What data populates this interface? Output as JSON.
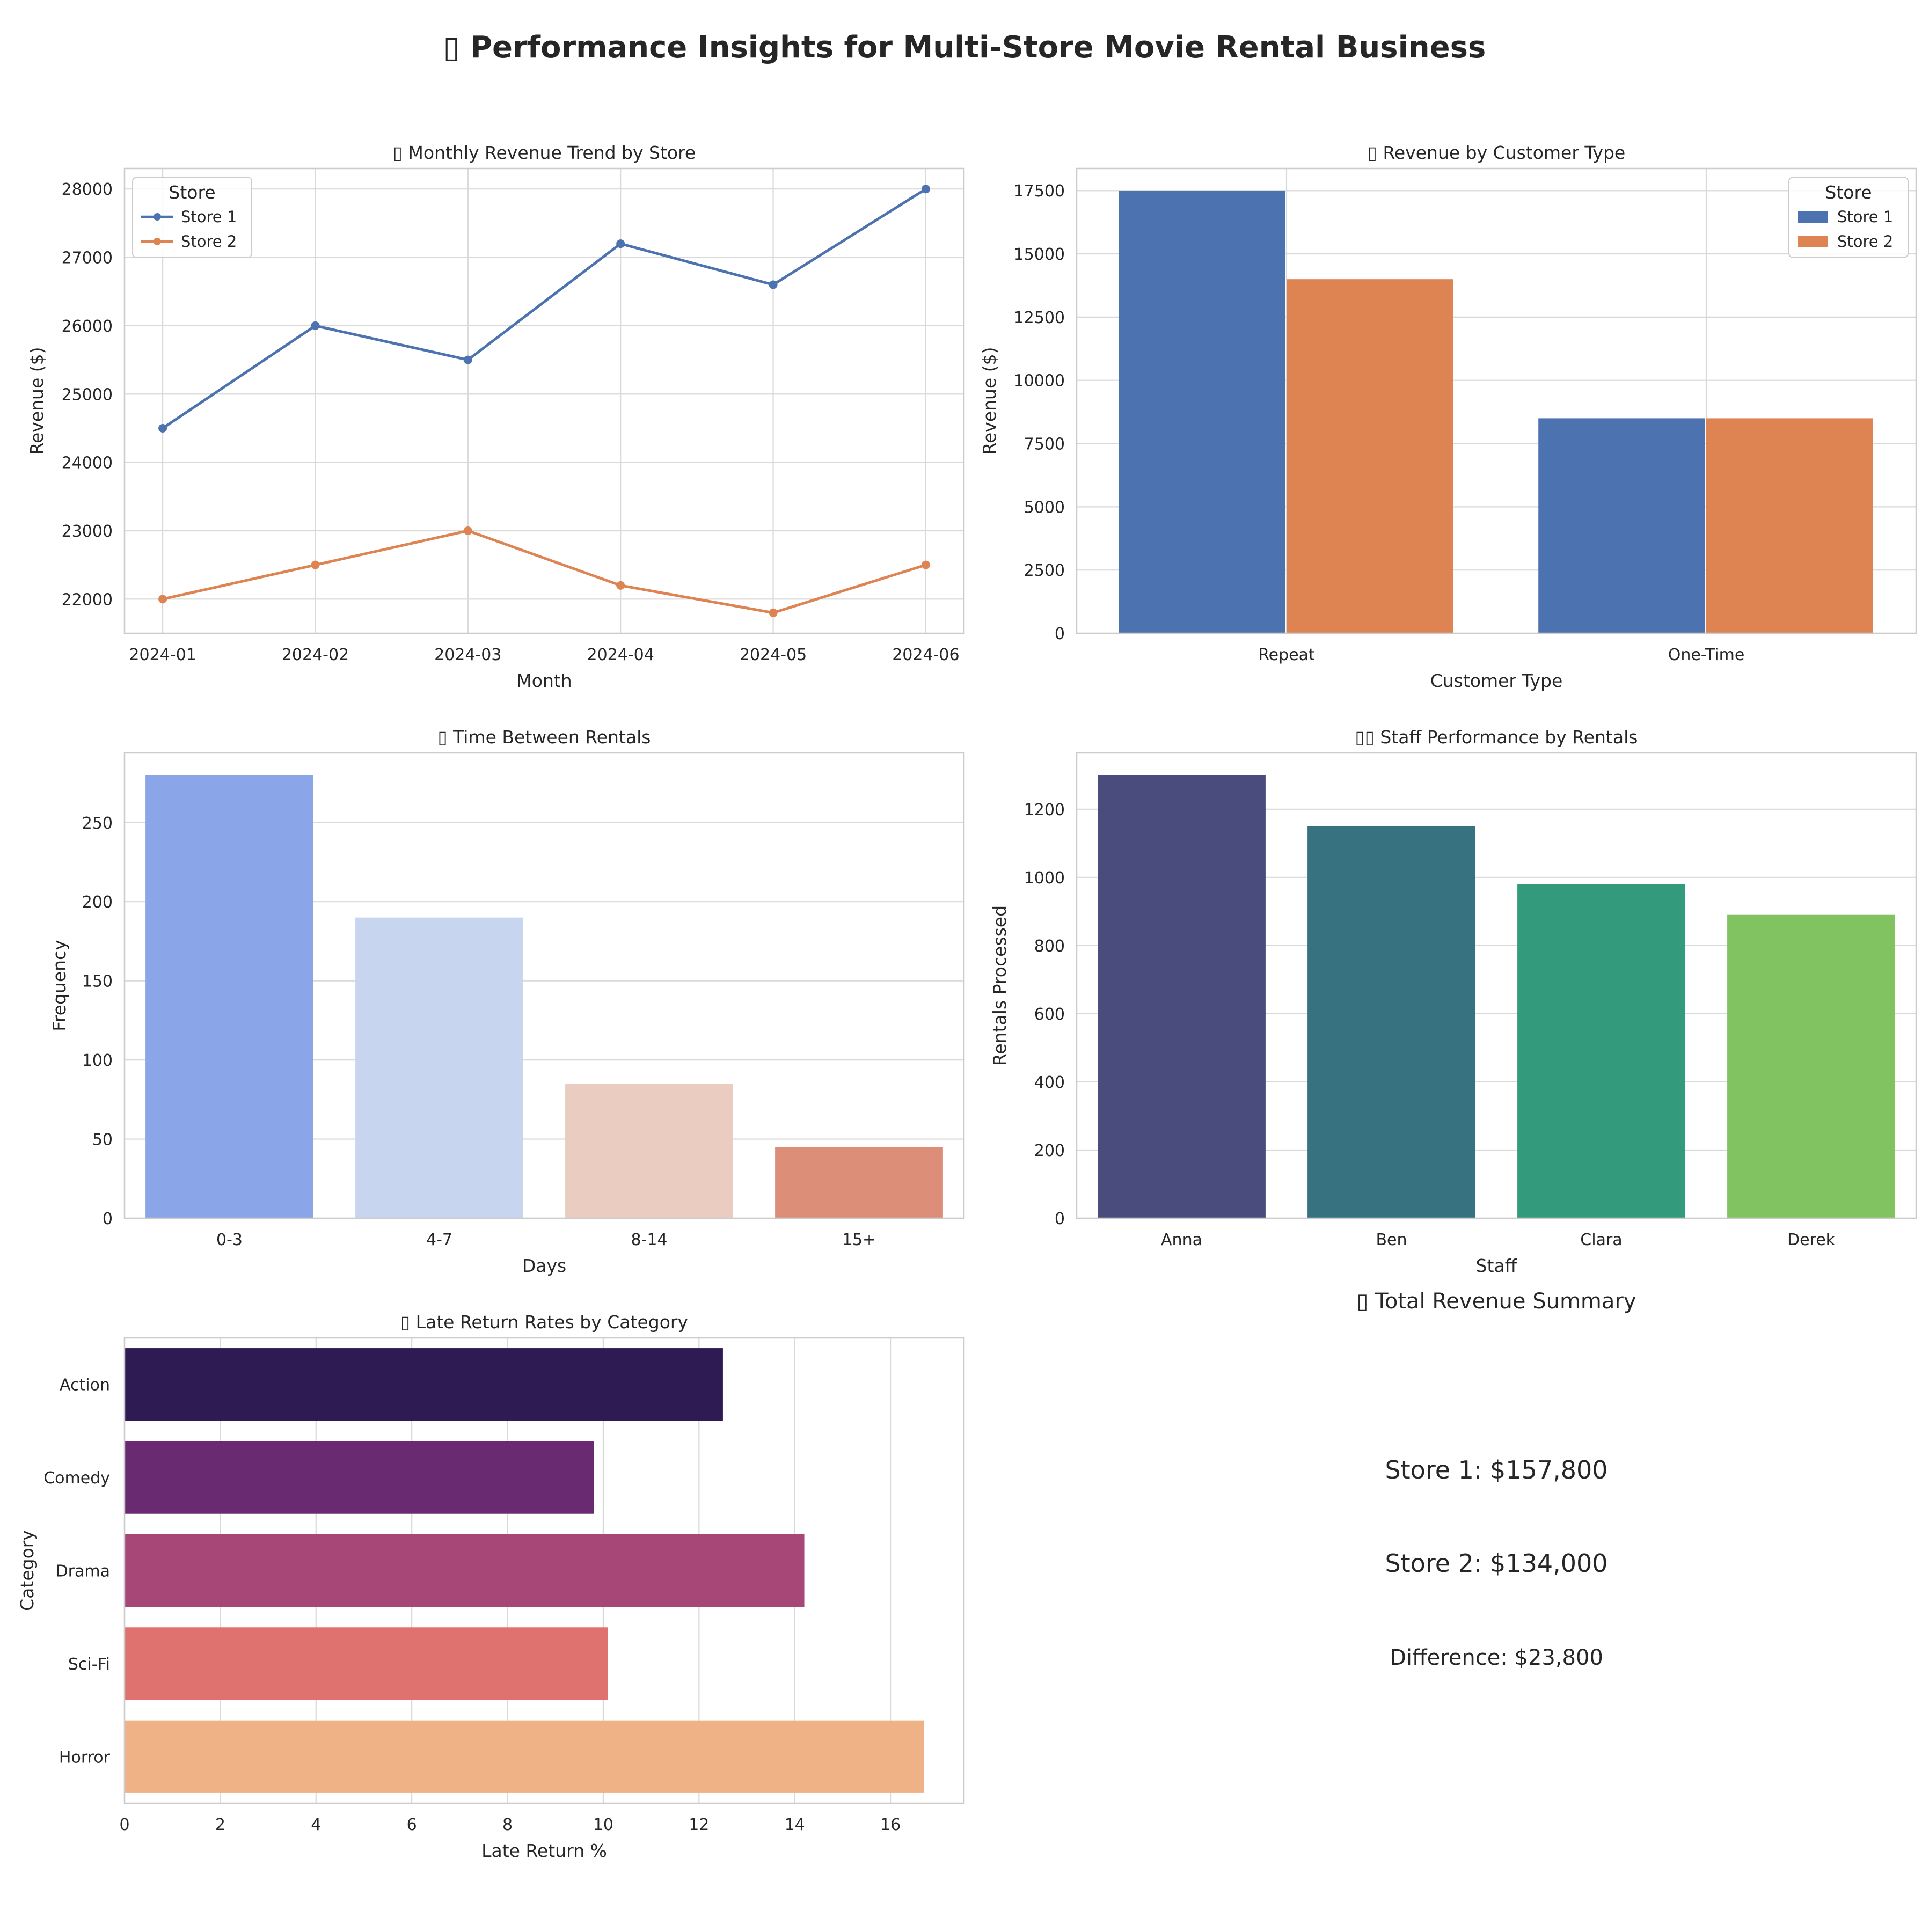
{
  "title": "▯ Performance Insights for Multi-Store Movie Rental Business",
  "chart_data": [
    {
      "id": "monthly",
      "type": "line",
      "title": "▯ Monthly Revenue Trend by Store",
      "xlabel": "Month",
      "ylabel": "Revenue ($)",
      "categories": [
        "2024-01",
        "2024-02",
        "2024-03",
        "2024-04",
        "2024-05",
        "2024-06"
      ],
      "series": [
        {
          "name": "Store 1",
          "color": "#4c72b0",
          "values": [
            24500,
            26000,
            25500,
            27200,
            26600,
            28000
          ]
        },
        {
          "name": "Store 2",
          "color": "#dd8452",
          "values": [
            22000,
            22500,
            23000,
            22200,
            21800,
            22500
          ]
        }
      ],
      "ylim": [
        21500,
        28300
      ],
      "yticks": [
        22000,
        23000,
        24000,
        25000,
        26000,
        27000,
        28000
      ],
      "legend": {
        "title": "Store",
        "position": "top-left"
      },
      "grid": true
    },
    {
      "id": "customer",
      "type": "bar",
      "title": "▯ Revenue by Customer Type",
      "xlabel": "Customer Type",
      "ylabel": "Revenue ($)",
      "categories": [
        "Repeat",
        "One-Time"
      ],
      "series": [
        {
          "name": "Store 1",
          "color": "#4c72b0",
          "values": [
            17500,
            8500
          ]
        },
        {
          "name": "Store 2",
          "color": "#dd8452",
          "values": [
            14000,
            8500
          ]
        }
      ],
      "ylim": [
        0,
        18375
      ],
      "yticks": [
        0,
        2500,
        5000,
        7500,
        10000,
        12500,
        15000,
        17500
      ],
      "legend": {
        "title": "Store",
        "position": "top-right"
      },
      "grid": true
    },
    {
      "id": "gaps",
      "type": "bar",
      "title": "▯ Time Between Rentals",
      "xlabel": "Days",
      "ylabel": "Frequency",
      "categories": [
        "0-3",
        "4-7",
        "8-14",
        "15+"
      ],
      "values": [
        280,
        190,
        85,
        45
      ],
      "colors": [
        "#8aa5e8",
        "#c7d5ef",
        "#eacdc0",
        "#dd8e79"
      ],
      "ylim": [
        0,
        294
      ],
      "yticks": [
        0,
        50,
        100,
        150,
        200,
        250
      ],
      "grid": true
    },
    {
      "id": "staff",
      "type": "bar",
      "title": "▯▯ Staff Performance by Rentals",
      "xlabel": "Staff",
      "ylabel": "Rentals Processed",
      "categories": [
        "Anna",
        "Ben",
        "Clara",
        "Derek"
      ],
      "values": [
        1300,
        1150,
        980,
        890
      ],
      "colors": [
        "#4a4c7d",
        "#367280",
        "#349a7c",
        "#82c361"
      ],
      "ylim": [
        0,
        1365
      ],
      "yticks": [
        0,
        200,
        400,
        600,
        800,
        1000,
        1200
      ],
      "grid": true
    },
    {
      "id": "late",
      "type": "bar",
      "orientation": "horizontal",
      "title": "▯ Late Return Rates by Category",
      "xlabel": "Late Return %",
      "ylabel": "Category",
      "categories": [
        "Action",
        "Comedy",
        "Drama",
        "Sci-Fi",
        "Horror"
      ],
      "values": [
        12.5,
        9.8,
        14.2,
        10.1,
        16.7
      ],
      "colors": [
        "#2f1b54",
        "#6a2a72",
        "#a64778",
        "#df726f",
        "#efb287"
      ],
      "xlim": [
        0,
        17.535
      ],
      "xticks": [
        0,
        2,
        4,
        6,
        8,
        10,
        12,
        14,
        16
      ],
      "grid": true
    }
  ],
  "summary": {
    "title": "▯ Total Revenue Summary",
    "store1": "Store 1: $157,800",
    "store2": "Store 2: $134,000",
    "difference": "Difference: $23,800",
    "difference_color": "#008000"
  }
}
